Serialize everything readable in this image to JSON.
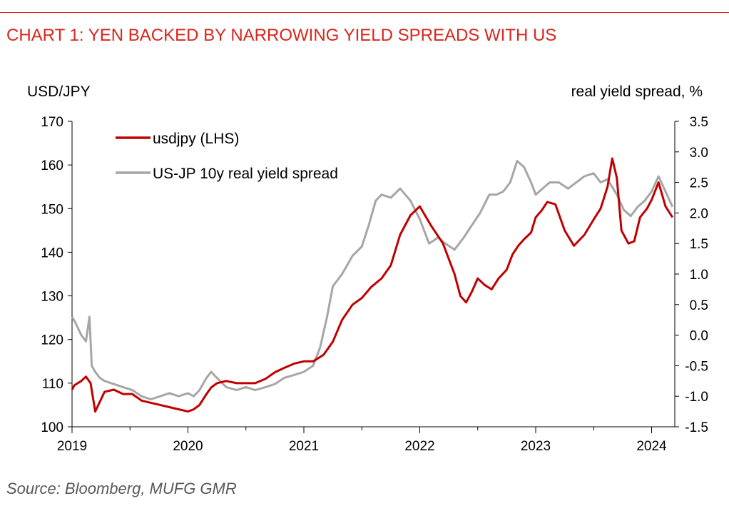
{
  "title": "CHART 1: YEN BACKED BY NARROWING YIELD SPREADS WITH US",
  "source": "Source: Bloomberg, MUFG GMR",
  "colors": {
    "accent": "#d9261c",
    "usdjpy": "#c00000",
    "spread": "#a6a6a6"
  },
  "chart_data": {
    "type": "line",
    "title": "CHART 1: YEN BACKED BY NARROWING YIELD SPREADS WITH US",
    "left_axis_label": "USD/JPY",
    "right_axis_label": "real yield spread, %",
    "ylim_left": [
      100,
      170
    ],
    "ylim_right": [
      -1.5,
      3.5
    ],
    "xlim": [
      2019,
      2024.2
    ],
    "left_ticks": [
      "100",
      "110",
      "120",
      "130",
      "140",
      "150",
      "160",
      "170"
    ],
    "right_ticks": [
      "-1.5",
      "-1.0",
      "-0.5",
      "0.0",
      "0.5",
      "1.0",
      "1.5",
      "2.0",
      "2.5",
      "3.0",
      "3.5"
    ],
    "x_ticks": [
      "2019",
      "2020",
      "2021",
      "2022",
      "2023",
      "2024"
    ],
    "grid": false,
    "legend_position": "top-left",
    "series": [
      {
        "name": "usdjpy (LHS)",
        "axis": "left",
        "x": [
          2019.0,
          2019.02,
          2019.08,
          2019.12,
          2019.16,
          2019.2,
          2019.28,
          2019.36,
          2019.44,
          2019.52,
          2019.6,
          2019.68,
          2019.76,
          2019.84,
          2019.92,
          2020.0,
          2020.05,
          2020.1,
          2020.16,
          2020.2,
          2020.25,
          2020.33,
          2020.42,
          2020.5,
          2020.58,
          2020.67,
          2020.75,
          2020.83,
          2020.92,
          2021.0,
          2021.08,
          2021.17,
          2021.25,
          2021.33,
          2021.42,
          2021.5,
          2021.58,
          2021.67,
          2021.75,
          2021.83,
          2021.92,
          2022.0,
          2022.1,
          2022.2,
          2022.3,
          2022.35,
          2022.4,
          2022.45,
          2022.5,
          2022.56,
          2022.62,
          2022.68,
          2022.75,
          2022.8,
          2022.85,
          2022.9,
          2022.96,
          2023.0,
          2023.05,
          2023.1,
          2023.17,
          2023.25,
          2023.33,
          2023.42,
          2023.5,
          2023.56,
          2023.62,
          2023.66,
          2023.7,
          2023.74,
          2023.8,
          2023.85,
          2023.9,
          2023.96,
          2024.0,
          2024.06,
          2024.12,
          2024.18
        ],
        "values": [
          108.5,
          109.5,
          110.5,
          111.5,
          110.0,
          103.5,
          108.0,
          108.5,
          107.5,
          107.5,
          106.0,
          105.5,
          105.0,
          104.5,
          104.0,
          103.5,
          104.0,
          105.0,
          107.5,
          109.0,
          110.0,
          110.5,
          110.0,
          110.0,
          110.0,
          111.0,
          112.5,
          113.5,
          114.5,
          115.0,
          115.0,
          116.5,
          119.5,
          124.5,
          128.0,
          129.5,
          132.0,
          134.0,
          137.0,
          144.0,
          148.5,
          150.5,
          146.0,
          142.0,
          135.0,
          130.0,
          128.5,
          131.0,
          134.0,
          132.5,
          131.5,
          134.0,
          136.0,
          139.5,
          141.5,
          143.0,
          144.5,
          148.0,
          149.5,
          151.5,
          151.0,
          145.0,
          141.5,
          144.0,
          147.5,
          150.0,
          155.0,
          161.5,
          157.0,
          145.0,
          142.0,
          142.5,
          148.0,
          150.0,
          152.0,
          156.0,
          150.5,
          148.0
        ]
      },
      {
        "name": "US-JP 10y real yield spread",
        "axis": "right",
        "x": [
          2019.0,
          2019.03,
          2019.08,
          2019.12,
          2019.15,
          2019.17,
          2019.2,
          2019.24,
          2019.28,
          2019.36,
          2019.44,
          2019.52,
          2019.6,
          2019.68,
          2019.76,
          2019.84,
          2019.92,
          2020.0,
          2020.05,
          2020.1,
          2020.16,
          2020.2,
          2020.25,
          2020.33,
          2020.42,
          2020.5,
          2020.58,
          2020.67,
          2020.75,
          2020.83,
          2020.92,
          2021.0,
          2021.08,
          2021.14,
          2021.2,
          2021.25,
          2021.33,
          2021.42,
          2021.5,
          2021.56,
          2021.62,
          2021.67,
          2021.75,
          2021.83,
          2021.92,
          2022.0,
          2022.08,
          2022.16,
          2022.22,
          2022.3,
          2022.38,
          2022.45,
          2022.52,
          2022.6,
          2022.66,
          2022.72,
          2022.78,
          2022.84,
          2022.9,
          2022.96,
          2023.0,
          2023.06,
          2023.12,
          2023.2,
          2023.28,
          2023.35,
          2023.42,
          2023.5,
          2023.56,
          2023.62,
          2023.7,
          2023.76,
          2023.82,
          2023.88,
          2023.94,
          2024.0,
          2024.06,
          2024.12,
          2024.18
        ],
        "values": [
          0.3,
          0.2,
          0.0,
          -0.1,
          0.3,
          -0.5,
          -0.6,
          -0.7,
          -0.75,
          -0.8,
          -0.85,
          -0.9,
          -1.0,
          -1.05,
          -1.0,
          -0.95,
          -1.0,
          -0.95,
          -1.0,
          -0.9,
          -0.7,
          -0.6,
          -0.7,
          -0.85,
          -0.9,
          -0.85,
          -0.9,
          -0.85,
          -0.8,
          -0.7,
          -0.65,
          -0.6,
          -0.5,
          -0.2,
          0.3,
          0.8,
          1.0,
          1.3,
          1.45,
          1.8,
          2.2,
          2.3,
          2.25,
          2.4,
          2.2,
          1.9,
          1.5,
          1.6,
          1.5,
          1.4,
          1.6,
          1.8,
          2.0,
          2.3,
          2.3,
          2.35,
          2.5,
          2.85,
          2.75,
          2.5,
          2.3,
          2.4,
          2.5,
          2.5,
          2.4,
          2.5,
          2.6,
          2.65,
          2.5,
          2.55,
          2.3,
          2.05,
          1.95,
          2.1,
          2.2,
          2.35,
          2.6,
          2.35,
          2.1
        ]
      }
    ]
  }
}
